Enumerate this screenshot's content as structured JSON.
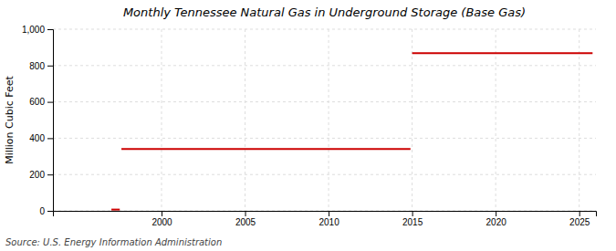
{
  "chart_data": {
    "type": "line",
    "title": "Monthly Tennessee Natural Gas in Underground Storage (Base Gas)",
    "ylabel": "Million Cubic Feet",
    "annotations": [
      "Source: U.S. Energy Information Administration"
    ],
    "series": [
      {
        "color": "#cc0000",
        "x": [
          1997.0,
          1997.5
        ],
        "values": [
          7,
          7
        ]
      },
      {
        "color": "#cc0000",
        "x": [
          1997.6,
          2014.9
        ],
        "values": [
          340,
          340
        ]
      },
      {
        "color": "#cc0000",
        "x": [
          2015.0,
          2025.8
        ],
        "values": [
          868,
          868
        ]
      }
    ],
    "xlim": [
      1993.5,
      2026
    ],
    "ylim": [
      0,
      1000
    ],
    "xticks": [
      2000,
      2005,
      2010,
      2015,
      2020,
      2025
    ],
    "yticks": [
      0,
      200,
      400,
      600,
      800,
      {
        "value": 1000,
        "label": "1,000"
      }
    ],
    "grid": true
  }
}
